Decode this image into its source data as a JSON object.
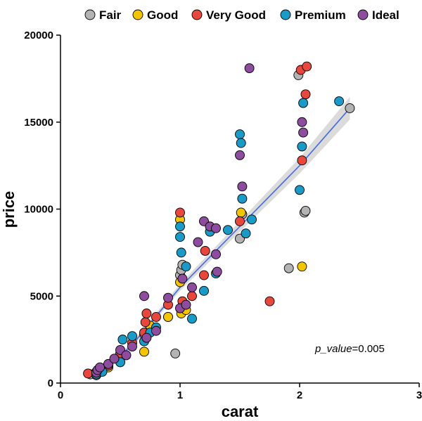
{
  "chart_data": {
    "type": "scatter",
    "xlabel": "carat",
    "ylabel": "price",
    "xlim": [
      0,
      3
    ],
    "ylim": [
      0,
      20000
    ],
    "xticks": [
      0,
      1,
      2,
      3
    ],
    "yticks": [
      0,
      5000,
      10000,
      15000,
      20000
    ],
    "xtick_labels": [
      "0",
      "1",
      "2",
      "3"
    ],
    "ytick_labels": [
      "0",
      "5000",
      "10000",
      "15000",
      "20000"
    ],
    "grid": false,
    "legend_position": "top",
    "annotation": {
      "italic_part": "p_value",
      "rest": "=0.005"
    },
    "regression_line": {
      "color": "#4169E1",
      "points": [
        [
          0.33,
          500
        ],
        [
          0.6,
          2200
        ],
        [
          1.0,
          5500
        ],
        [
          1.5,
          9000
        ],
        [
          2.0,
          12500
        ],
        [
          2.42,
          15800
        ]
      ],
      "band_halfwidth": [
        150,
        150,
        200,
        300,
        450,
        650
      ]
    },
    "series": [
      {
        "name": "Fair",
        "color": "#B3B3B3",
        "points": [
          [
            0.25,
            500
          ],
          [
            0.34,
            700
          ],
          [
            0.5,
            1500
          ],
          [
            0.7,
            2800
          ],
          [
            0.9,
            3800
          ],
          [
            0.96,
            1700
          ],
          [
            1.0,
            6200
          ],
          [
            1.01,
            6500
          ],
          [
            1.02,
            6800
          ],
          [
            1.5,
            8300
          ],
          [
            1.52,
            9700
          ],
          [
            1.91,
            6600
          ],
          [
            1.99,
            17700
          ],
          [
            2.04,
            9800
          ],
          [
            2.05,
            9900
          ],
          [
            2.42,
            15800
          ]
        ]
      },
      {
        "name": "Good",
        "color": "#F2C500",
        "points": [
          [
            0.3,
            450
          ],
          [
            0.4,
            900
          ],
          [
            0.5,
            1200
          ],
          [
            0.7,
            1800
          ],
          [
            0.75,
            3300
          ],
          [
            0.9,
            3800
          ],
          [
            1.0,
            5800
          ],
          [
            1.0,
            9400
          ],
          [
            1.01,
            4000
          ],
          [
            1.05,
            4200
          ],
          [
            1.51,
            9800
          ],
          [
            2.02,
            6700
          ]
        ]
      },
      {
        "name": "Very Good",
        "color": "#E8473D",
        "points": [
          [
            0.23,
            550
          ],
          [
            0.3,
            650
          ],
          [
            0.35,
            800
          ],
          [
            0.4,
            1000
          ],
          [
            0.5,
            1700
          ],
          [
            0.6,
            2300
          ],
          [
            0.7,
            2900
          ],
          [
            0.71,
            3500
          ],
          [
            0.72,
            4000
          ],
          [
            0.8,
            3800
          ],
          [
            0.9,
            4500
          ],
          [
            1.0,
            9800
          ],
          [
            1.02,
            4700
          ],
          [
            1.1,
            5000
          ],
          [
            1.2,
            6200
          ],
          [
            1.21,
            7600
          ],
          [
            1.5,
            9300
          ],
          [
            1.75,
            4700
          ],
          [
            2.01,
            18000
          ],
          [
            2.05,
            16600
          ],
          [
            2.06,
            18200
          ],
          [
            2.02,
            12800
          ]
        ]
      },
      {
        "name": "Premium",
        "color": "#1A9AC7",
        "points": [
          [
            0.3,
            500
          ],
          [
            0.35,
            650
          ],
          [
            0.5,
            1200
          ],
          [
            0.52,
            2500
          ],
          [
            0.6,
            2700
          ],
          [
            0.7,
            2400
          ],
          [
            0.75,
            2900
          ],
          [
            0.8,
            3200
          ],
          [
            1.0,
            9000
          ],
          [
            1.0,
            8400
          ],
          [
            1.01,
            7500
          ],
          [
            1.05,
            6700
          ],
          [
            1.1,
            3700
          ],
          [
            1.2,
            5300
          ],
          [
            1.25,
            8700
          ],
          [
            1.3,
            6300
          ],
          [
            1.4,
            8800
          ],
          [
            1.5,
            14300
          ],
          [
            1.51,
            13800
          ],
          [
            1.52,
            10600
          ],
          [
            1.55,
            8600
          ],
          [
            1.6,
            9400
          ],
          [
            2.0,
            11100
          ],
          [
            2.02,
            13600
          ],
          [
            2.03,
            16100
          ],
          [
            2.33,
            16200
          ]
        ]
      },
      {
        "name": "Ideal",
        "color": "#8E4C9E",
        "points": [
          [
            0.3,
            600
          ],
          [
            0.31,
            750
          ],
          [
            0.33,
            900
          ],
          [
            0.4,
            1100
          ],
          [
            0.45,
            1400
          ],
          [
            0.5,
            1900
          ],
          [
            0.55,
            1600
          ],
          [
            0.6,
            2100
          ],
          [
            0.7,
            5000
          ],
          [
            0.72,
            2600
          ],
          [
            0.8,
            3000
          ],
          [
            0.9,
            4900
          ],
          [
            1.0,
            4300
          ],
          [
            1.02,
            6000
          ],
          [
            1.05,
            4500
          ],
          [
            1.1,
            5500
          ],
          [
            1.15,
            8100
          ],
          [
            1.2,
            9300
          ],
          [
            1.25,
            9000
          ],
          [
            1.3,
            8900
          ],
          [
            1.3,
            7400
          ],
          [
            1.31,
            6400
          ],
          [
            1.5,
            13100
          ],
          [
            1.52,
            11300
          ],
          [
            1.58,
            18100
          ],
          [
            2.02,
            15000
          ],
          [
            2.03,
            14400
          ]
        ]
      }
    ]
  }
}
